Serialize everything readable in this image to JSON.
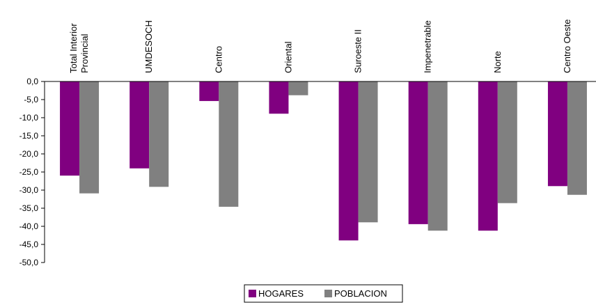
{
  "chart_data": {
    "type": "bar",
    "categories": [
      "Total Interior Provincial",
      "UMDESOCH",
      "Centro",
      "Oriental",
      "Suroeste II",
      "Impenetrable",
      "Norte",
      "Centro Oeste"
    ],
    "category_lines": [
      [
        "Total Interior",
        "Provincial"
      ],
      [
        "UMDESOCH"
      ],
      [
        "Centro"
      ],
      [
        "Oriental"
      ],
      [
        "Suroeste II"
      ],
      [
        "Impenetrable"
      ],
      [
        "Norte"
      ],
      [
        "Centro Oeste"
      ]
    ],
    "series": [
      {
        "name": "HOGARES",
        "color": "#800080",
        "values": [
          -26.0,
          -24.0,
          -5.4,
          -8.9,
          -43.9,
          -39.4,
          -41.2,
          -28.9
        ]
      },
      {
        "name": "POBLACION",
        "color": "#808080",
        "values": [
          -30.9,
          -29.1,
          -34.6,
          -3.8,
          -38.9,
          -41.2,
          -33.6,
          -31.3
        ]
      }
    ],
    "ylim": [
      -50,
      0
    ],
    "yticks": [
      "0,0",
      "-5,0",
      "-10,0",
      "-15,0",
      "-20,0",
      "-25,0",
      "-30,0",
      "-35,0",
      "-40,0",
      "-45,0",
      "-50,0"
    ],
    "legend_position": "bottom",
    "grid": false
  }
}
